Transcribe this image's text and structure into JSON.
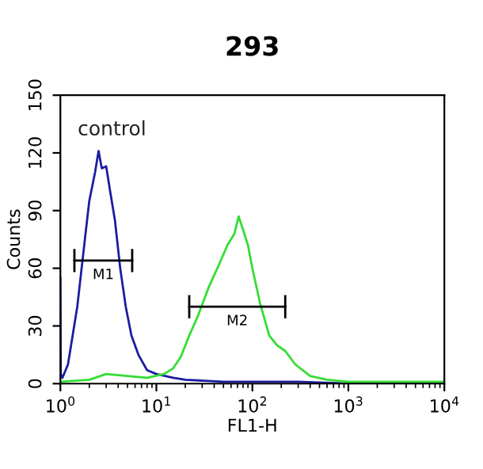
{
  "chart_data": {
    "type": "line",
    "title": "293",
    "xlabel": "FL1-H",
    "ylabel": "Counts",
    "log": "x",
    "xlim": [
      1,
      10000
    ],
    "xticks": [
      {
        "value": 1,
        "label": "10$^{0}$"
      },
      {
        "value": 10,
        "label": "10$^{1}$"
      },
      {
        "value": 100,
        "label": "10$^{2}$"
      },
      {
        "value": 1000,
        "label": "10$^{3}$"
      },
      {
        "value": 10000,
        "label": "10$^{4}$"
      }
    ],
    "ylim": [
      0,
      150
    ],
    "yticks": [
      0,
      30,
      60,
      90,
      120,
      150
    ],
    "grid": false,
    "annotations": [
      "control"
    ],
    "series": [
      {
        "color": "#1c1ca0",
        "x": [
          1.0,
          1.01,
          1.05,
          1.2,
          1.5,
          1.8,
          2.0,
          2.3,
          2.5,
          2.7,
          3.0,
          3.3,
          3.7,
          4.2,
          4.8,
          5.5,
          6.5,
          8,
          10,
          15,
          20,
          50,
          100,
          300,
          1000,
          10000
        ],
        "values": [
          55,
          5,
          3,
          10,
          40,
          75,
          95,
          110,
          121,
          112,
          113,
          100,
          85,
          60,
          40,
          25,
          15,
          7,
          5,
          3,
          2,
          1,
          1,
          1,
          0,
          0
        ]
      },
      {
        "color": "#33dd33",
        "x": [
          1,
          2,
          3,
          5,
          8,
          12,
          15,
          18,
          22,
          27,
          35,
          45,
          55,
          65,
          72,
          80,
          90,
          100,
          120,
          150,
          180,
          220,
          280,
          400,
          600,
          1000,
          10000
        ],
        "values": [
          1,
          2,
          5,
          4,
          3,
          5,
          8,
          14,
          25,
          35,
          50,
          62,
          72,
          78,
          87,
          80,
          72,
          60,
          42,
          25,
          20,
          17,
          10,
          4,
          2,
          1,
          1
        ]
      },
      {
        "name": "M1",
        "color": "#000000",
        "x": [
          1.4,
          5.6
        ],
        "values": [
          64,
          64
        ],
        "errors": [
          6,
          6
        ]
      },
      {
        "name": "M2",
        "color": "#000000",
        "x": [
          22,
          220
        ],
        "values": [
          40,
          40
        ],
        "errors": [
          6,
          6
        ]
      }
    ]
  }
}
